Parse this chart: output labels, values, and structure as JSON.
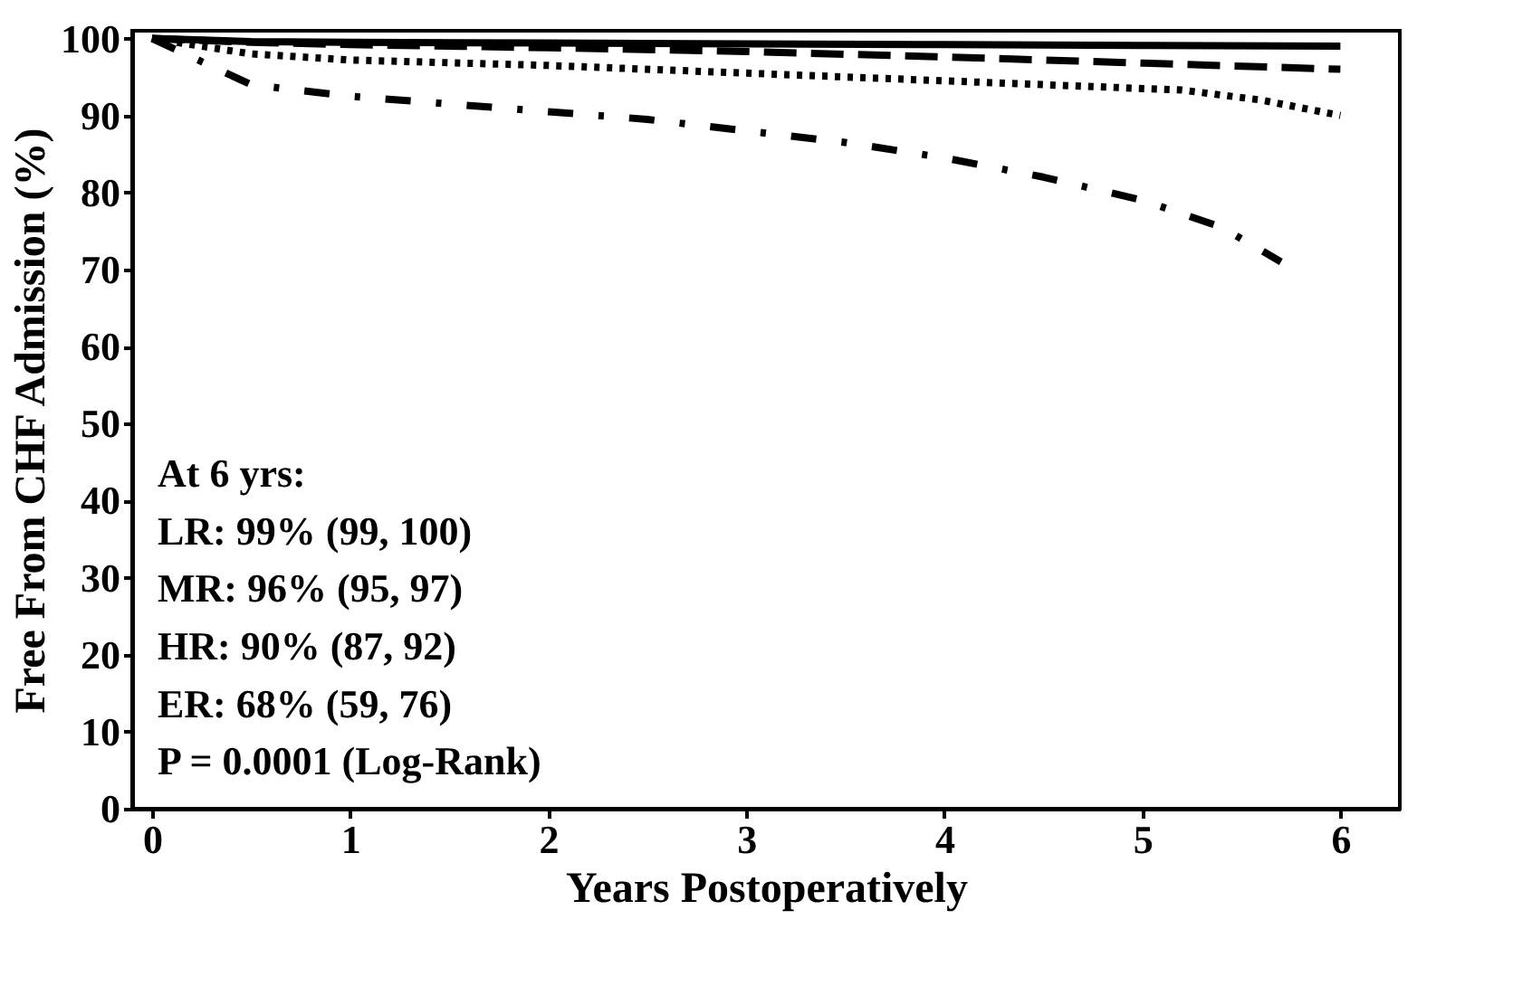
{
  "chart_data": {
    "type": "line",
    "xlabel": "Years Postoperatively",
    "ylabel": "Free From CHF Admission (%)",
    "xlim": [
      -0.1,
      6.3
    ],
    "ylim": [
      0,
      101
    ],
    "xticks": [
      0,
      1,
      2,
      3,
      4,
      5,
      6
    ],
    "yticks": [
      0,
      10,
      20,
      30,
      40,
      50,
      60,
      70,
      80,
      90,
      100
    ],
    "grid": false,
    "marker": "none",
    "series": [
      {
        "color": "#000000",
        "line_style": "solid",
        "x": [
          0,
          0.5,
          1,
          2,
          3,
          4,
          5,
          6
        ],
        "values": [
          100,
          99.6,
          99.5,
          99.4,
          99.3,
          99.2,
          99.1,
          99
        ]
      },
      {
        "color": "#000000",
        "line_style": "dashed",
        "x": [
          0,
          0.5,
          1,
          2,
          3,
          4,
          5,
          6
        ],
        "values": [
          100,
          99.5,
          99.2,
          98.8,
          98.3,
          97.6,
          96.8,
          96
        ]
      },
      {
        "color": "#000000",
        "line_style": "dotted",
        "x": [
          0,
          0.5,
          1,
          2,
          3,
          4,
          4.5,
          5.2,
          5.6,
          6
        ],
        "values": [
          100,
          98,
          97.2,
          96.5,
          95.5,
          94.5,
          94,
          93.3,
          92,
          90
        ]
      },
      {
        "color": "#000000",
        "line_style": "dashdot",
        "x": [
          0,
          0.5,
          1,
          1.5,
          2,
          2.5,
          3,
          3.5,
          4,
          4.5,
          5,
          5.4,
          5.7
        ],
        "values": [
          100,
          94,
          92.5,
          91.5,
          90.5,
          89.5,
          88,
          86.5,
          84.5,
          82,
          79,
          75.5,
          71
        ]
      }
    ],
    "annotations": [
      "At 6 yrs:",
      "LR:  99% (99, 100)",
      "MR: 96% (95, 97)",
      "HR:  90% (87, 92)",
      "ER:  68% (59, 76)",
      "P = 0.0001 (Log-Rank)"
    ]
  }
}
